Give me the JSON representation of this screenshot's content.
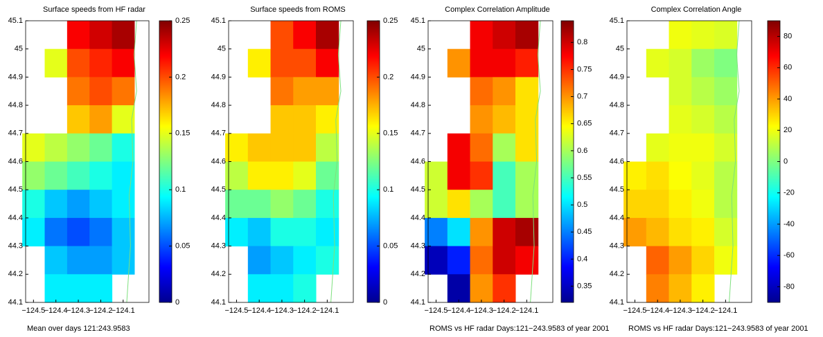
{
  "chart_data": [
    {
      "type": "heatmap",
      "title": "Surface speeds from HF radar",
      "note": "Mean over days 121:243.9583",
      "xlim": [
        -124.535,
        -123.985
      ],
      "ylim": [
        44.1,
        45.1
      ],
      "xticks": [
        {
          "value": -124.5,
          "label": "−124.5"
        },
        {
          "value": -124.4,
          "label": "−124.4"
        },
        {
          "value": -124.3,
          "label": "−124.3"
        },
        {
          "value": -124.2,
          "label": "−124.2"
        },
        {
          "value": -124.1,
          "label": "−124.1"
        }
      ],
      "yticks": [
        44.1,
        44.2,
        44.3,
        44.4,
        44.5,
        44.6,
        44.7,
        44.8,
        44.9,
        45,
        45.1
      ],
      "x": [
        -124.5,
        -124.4,
        -124.3,
        -124.2,
        -124.1
      ],
      "y": [
        45.05,
        44.95,
        44.85,
        44.75,
        44.65,
        44.55,
        44.45,
        44.35,
        44.25,
        44.15
      ],
      "z": [
        [
          null,
          null,
          0.22,
          0.23,
          0.24
        ],
        [
          null,
          0.15,
          0.2,
          0.21,
          0.22
        ],
        [
          null,
          null,
          0.19,
          0.2,
          0.19
        ],
        [
          null,
          null,
          0.17,
          0.18,
          0.15
        ],
        [
          0.15,
          0.14,
          0.13,
          0.12,
          0.1
        ],
        [
          0.13,
          0.12,
          0.11,
          0.1,
          0.09
        ],
        [
          0.1,
          0.08,
          0.07,
          0.08,
          0.09
        ],
        [
          0.09,
          0.06,
          0.05,
          0.06,
          0.08
        ],
        [
          null,
          0.08,
          0.07,
          0.07,
          0.08
        ],
        [
          null,
          0.09,
          0.09,
          0.09,
          null
        ]
      ],
      "clim": [
        0,
        0.25
      ],
      "cticks": [
        0,
        0.05,
        0.1,
        0.15,
        0.2,
        0.25
      ]
    },
    {
      "type": "heatmap",
      "title": "Surface speeds from ROMS",
      "xlim": [
        -124.535,
        -123.985
      ],
      "ylim": [
        44.1,
        45.1
      ],
      "xticks": [
        {
          "value": -124.5,
          "label": "−124.5"
        },
        {
          "value": -124.4,
          "label": "−124.4"
        },
        {
          "value": -124.3,
          "label": "−124.3"
        },
        {
          "value": -124.2,
          "label": "−124.2"
        },
        {
          "value": -124.1,
          "label": "−124.1"
        }
      ],
      "yticks": [
        44.1,
        44.2,
        44.3,
        44.4,
        44.5,
        44.6,
        44.7,
        44.8,
        44.9,
        45,
        45.1
      ],
      "x": [
        -124.5,
        -124.4,
        -124.3,
        -124.2,
        -124.1
      ],
      "y": [
        45.05,
        44.95,
        44.85,
        44.75,
        44.65,
        44.55,
        44.45,
        44.35,
        44.25,
        44.15
      ],
      "z": [
        [
          null,
          null,
          0.2,
          0.22,
          0.24
        ],
        [
          null,
          0.16,
          0.2,
          0.2,
          0.22
        ],
        [
          null,
          null,
          0.19,
          0.18,
          0.18
        ],
        [
          null,
          null,
          0.17,
          0.17,
          0.16
        ],
        [
          0.16,
          0.17,
          0.17,
          0.17,
          0.14
        ],
        [
          0.14,
          0.16,
          0.16,
          0.15,
          0.12
        ],
        [
          0.12,
          0.12,
          0.13,
          0.12,
          0.1
        ],
        [
          0.09,
          0.08,
          0.1,
          0.1,
          0.09
        ],
        [
          null,
          0.07,
          0.08,
          0.09,
          0.1
        ],
        [
          null,
          0.09,
          0.09,
          0.1,
          null
        ]
      ],
      "clim": [
        0,
        0.25
      ],
      "cticks": [
        0,
        0.05,
        0.1,
        0.15,
        0.2,
        0.25
      ]
    },
    {
      "type": "heatmap",
      "title": "Complex Correlation Amplitude",
      "note": "ROMS vs HF radar Days:121−243.9583 of year 2001",
      "xlim": [
        -124.535,
        -123.985
      ],
      "ylim": [
        44.1,
        45.1
      ],
      "xticks": [
        {
          "value": -124.5,
          "label": "−124.5"
        },
        {
          "value": -124.4,
          "label": "−124.4"
        },
        {
          "value": -124.3,
          "label": "−124.3"
        },
        {
          "value": -124.2,
          "label": "−124.2"
        },
        {
          "value": -124.1,
          "label": "−124.1"
        }
      ],
      "yticks": [
        44.1,
        44.2,
        44.3,
        44.4,
        44.5,
        44.6,
        44.7,
        44.8,
        44.9,
        45,
        45.1
      ],
      "x": [
        -124.5,
        -124.4,
        -124.3,
        -124.2,
        -124.1
      ],
      "y": [
        45.05,
        44.95,
        44.85,
        44.75,
        44.65,
        44.55,
        44.45,
        44.35,
        44.25,
        44.15
      ],
      "z": [
        [
          null,
          null,
          0.78,
          0.8,
          0.82
        ],
        [
          null,
          0.7,
          0.78,
          0.78,
          0.76
        ],
        [
          null,
          null,
          0.72,
          0.7,
          0.66
        ],
        [
          null,
          null,
          0.7,
          0.68,
          0.66
        ],
        [
          null,
          0.78,
          0.72,
          0.6,
          0.66
        ],
        [
          0.62,
          0.78,
          0.75,
          0.55,
          0.6
        ],
        [
          0.62,
          0.66,
          0.6,
          0.55,
          0.6
        ],
        [
          0.45,
          0.5,
          0.7,
          0.8,
          0.82
        ],
        [
          0.35,
          0.4,
          0.72,
          0.8,
          0.78
        ],
        [
          null,
          0.34,
          0.7,
          0.75,
          null
        ]
      ],
      "clim": [
        0.32,
        0.84
      ],
      "cticks": [
        0.35,
        0.4,
        0.45,
        0.5,
        0.55,
        0.6,
        0.65,
        0.7,
        0.75,
        0.8
      ]
    },
    {
      "type": "heatmap",
      "title": "Complex Correlation Angle",
      "note": "ROMS vs HF radar Days:121−243.9583 of year 2001",
      "xlim": [
        -124.535,
        -123.985
      ],
      "ylim": [
        44.1,
        45.1
      ],
      "xticks": [
        {
          "value": -124.5,
          "label": "−124.5"
        },
        {
          "value": -124.4,
          "label": "−124.4"
        },
        {
          "value": -124.3,
          "label": "−124.3"
        },
        {
          "value": -124.2,
          "label": "−124.2"
        },
        {
          "value": -124.1,
          "label": "−124.1"
        }
      ],
      "yticks": [
        44.1,
        44.2,
        44.3,
        44.4,
        44.5,
        44.6,
        44.7,
        44.8,
        44.9,
        45,
        45.1
      ],
      "x": [
        -124.5,
        -124.4,
        -124.3,
        -124.2,
        -124.1
      ],
      "y": [
        45.05,
        44.95,
        44.85,
        44.75,
        44.65,
        44.55,
        44.45,
        44.35,
        44.25,
        44.15
      ],
      "z": [
        [
          null,
          null,
          20,
          18,
          16
        ],
        [
          null,
          18,
          15,
          5,
          0
        ],
        [
          null,
          null,
          15,
          10,
          5
        ],
        [
          null,
          null,
          18,
          15,
          10
        ],
        [
          null,
          18,
          20,
          20,
          15
        ],
        [
          25,
          28,
          22,
          18,
          10
        ],
        [
          30,
          30,
          25,
          20,
          10
        ],
        [
          40,
          35,
          28,
          25,
          15
        ],
        [
          null,
          50,
          40,
          30,
          20
        ],
        [
          null,
          45,
          35,
          25,
          null
        ]
      ],
      "clim": [
        -90,
        90
      ],
      "cticks": [
        -80,
        -60,
        -40,
        -20,
        0,
        20,
        40,
        60,
        80
      ]
    }
  ]
}
